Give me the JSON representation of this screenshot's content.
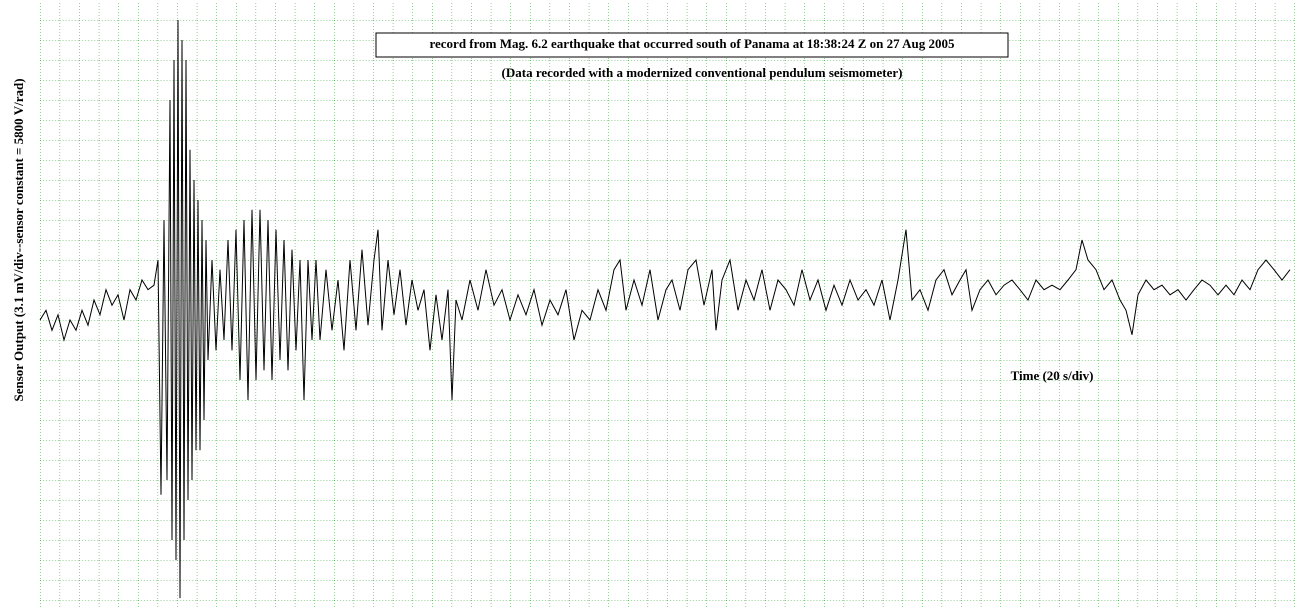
{
  "chart_data": {
    "type": "line",
    "title": "record from Mag. 6.2 earthquake that occurred south of Panama at 18:38:24 Z on 27 Aug 2005",
    "subtitle": "(Data recorded with a modernized conventional pendulum seismometer)",
    "y_label": "Sensor Output (3.1 mV/div--sensor constant = 5800 V/rad)",
    "x_label": "Time (20 s/div)",
    "grid": true,
    "grid_color": "#2e9e2e",
    "xlim": [
      0,
      1255
    ],
    "ylim": [
      -46.5,
      46.5
    ],
    "series": [
      {
        "color": "#000000",
        "x": [
          0,
          6,
          12,
          18,
          24,
          30,
          36,
          42,
          48,
          54,
          60,
          66,
          72,
          78,
          84,
          90,
          96,
          102,
          108,
          114,
          118,
          121,
          124,
          127,
          130,
          132,
          134,
          136,
          138,
          140,
          142,
          144,
          146,
          148,
          150,
          152,
          154,
          156,
          158,
          160,
          162,
          164,
          166,
          168,
          172,
          176,
          180,
          184,
          188,
          192,
          196,
          200,
          204,
          208,
          212,
          216,
          220,
          224,
          228,
          232,
          236,
          240,
          244,
          248,
          252,
          256,
          260,
          264,
          268,
          272,
          276,
          280,
          286,
          292,
          298,
          304,
          310,
          316,
          322,
          328,
          334,
          338,
          342,
          348,
          354,
          360,
          366,
          372,
          378,
          384,
          390,
          396,
          402,
          408,
          412,
          416,
          422,
          430,
          438,
          446,
          454,
          462,
          470,
          478,
          486,
          494,
          502,
          510,
          518,
          526,
          534,
          542,
          550,
          558,
          566,
          574,
          580,
          586,
          594,
          602,
          610,
          618,
          626,
          632,
          640,
          648,
          656,
          664,
          672,
          676,
          682,
          690,
          698,
          706,
          714,
          722,
          730,
          738,
          746,
          754,
          762,
          770,
          778,
          786,
          794,
          802,
          810,
          818,
          826,
          834,
          842,
          850,
          858,
          866,
          872,
          880,
          888,
          896,
          904,
          912,
          920,
          926,
          932,
          940,
          948,
          956,
          964,
          972,
          980,
          988,
          996,
          1004,
          1012,
          1020,
          1028,
          1036,
          1042,
          1048,
          1056,
          1064,
          1072,
          1080,
          1086,
          1092,
          1098,
          1106,
          1114,
          1122,
          1130,
          1138,
          1146,
          1154,
          1162,
          1170,
          1178,
          1186,
          1194,
          1202,
          1210,
          1218,
          1226,
          1234,
          1242,
          1250
        ],
        "values": [
          -3.1,
          -1.6,
          -4.7,
          -2.3,
          -6.2,
          -3.1,
          -4.7,
          -1.6,
          -3.9,
          0,
          -2.3,
          1.6,
          -0.8,
          0.8,
          -3.1,
          1.6,
          0,
          3.1,
          1.6,
          2.3,
          6.2,
          -30.2,
          12.4,
          -27.9,
          31.0,
          -37.2,
          37.2,
          -40.3,
          43.4,
          -46.2,
          40.3,
          -37.2,
          37.2,
          -31.0,
          23.3,
          -27.9,
          18.6,
          -23.3,
          15.5,
          -23.3,
          12.4,
          -18.6,
          9.3,
          -9.3,
          6.2,
          -7.8,
          4.7,
          -6.2,
          9.3,
          -7.8,
          10.9,
          -12.4,
          12.4,
          -15.5,
          14.0,
          -12.4,
          14.0,
          -10.9,
          12.4,
          -12.4,
          10.9,
          -9.3,
          9.3,
          -10.9,
          7.8,
          -7.8,
          6.2,
          -15.5,
          6.2,
          -6.2,
          6.2,
          -6.2,
          4.7,
          -4.7,
          3.1,
          -7.8,
          6.2,
          -4.7,
          7.8,
          -3.9,
          6.2,
          10.9,
          -4.7,
          6.2,
          -2.3,
          4.7,
          -3.9,
          3.1,
          -1.6,
          1.6,
          -7.8,
          0.8,
          -6.2,
          1.6,
          -15.5,
          0,
          -3.1,
          3.1,
          -1.6,
          4.7,
          -0.8,
          1.6,
          -3.1,
          0.8,
          -2.3,
          1.6,
          -3.9,
          0,
          -2.3,
          1.6,
          -6.2,
          -1.6,
          -3.1,
          1.6,
          -1.6,
          4.7,
          6.2,
          -1.6,
          3.1,
          -0.8,
          4.7,
          -3.1,
          1.6,
          3.1,
          -1.6,
          4.7,
          6.2,
          -0.8,
          4.7,
          -4.7,
          3.1,
          6.2,
          -1.6,
          3.1,
          0,
          4.7,
          -1.6,
          3.1,
          1.6,
          -0.8,
          4.7,
          0,
          3.1,
          -1.6,
          2.3,
          -0.8,
          3.1,
          0,
          1.6,
          -0.8,
          3.1,
          -3.1,
          3.1,
          10.9,
          0,
          1.6,
          -1.6,
          3.1,
          4.7,
          0.8,
          3.1,
          4.7,
          -1.6,
          1.6,
          3.1,
          0.8,
          2.3,
          3.1,
          1.6,
          0,
          3.1,
          1.6,
          2.3,
          1.6,
          3.1,
          4.7,
          9.3,
          6.2,
          4.7,
          1.6,
          3.1,
          0,
          -1.6,
          -5.4,
          0.8,
          3.1,
          1.6,
          2.3,
          0.8,
          1.6,
          0,
          1.6,
          3.1,
          2.3,
          0.8,
          2.3,
          0.8,
          3.1,
          1.6,
          4.7,
          6.2,
          4.7,
          3.1,
          4.7
        ]
      }
    ]
  }
}
